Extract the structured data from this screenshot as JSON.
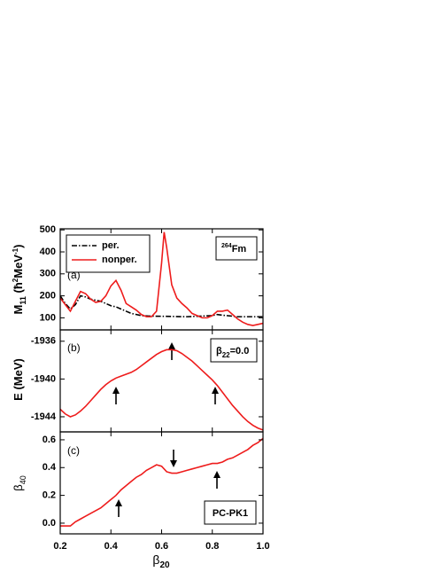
{
  "chart_data": [
    {
      "type": "line",
      "legend": "upper left",
      "ylabel": [
        "M",
        "11",
        " (ħ",
        "2",
        "MeV",
        "-1",
        ")"
      ],
      "annotations": [
        [
          "(a)"
        ],
        [
          "264",
          "Fm"
        ]
      ],
      "xlim": [
        0.2,
        1.0
      ],
      "xticks": [
        0.2,
        0.4,
        0.6,
        0.8,
        {
          "value": 1,
          "label": "1.0"
        }
      ],
      "show_xtick_labels": false,
      "ylim": [
        45,
        505
      ],
      "yticks": [
        100,
        200,
        300,
        400,
        500
      ],
      "series": [
        {
          "name": "per.",
          "color": "#000000",
          "dash": "dashdot",
          "x": [
            0.2,
            0.22,
            0.24,
            0.26,
            0.28,
            0.3,
            0.32,
            0.34,
            0.36,
            0.38,
            0.4,
            0.42,
            0.44,
            0.46,
            0.48,
            0.5,
            0.52,
            0.55,
            0.6,
            0.7,
            0.8,
            0.82,
            0.84,
            0.9,
            1.0
          ],
          "values": [
            200,
            165,
            140,
            160,
            200,
            195,
            185,
            180,
            175,
            165,
            155,
            150,
            140,
            130,
            120,
            115,
            110,
            108,
            107,
            105,
            110,
            115,
            112,
            105,
            105
          ]
        },
        {
          "name": "nonper.",
          "color": "#ee1c1c",
          "dash": "solid",
          "x": [
            0.2,
            0.22,
            0.24,
            0.26,
            0.28,
            0.3,
            0.32,
            0.34,
            0.36,
            0.38,
            0.4,
            0.42,
            0.44,
            0.46,
            0.48,
            0.5,
            0.52,
            0.54,
            0.56,
            0.58,
            0.6,
            0.61,
            0.62,
            0.64,
            0.66,
            0.68,
            0.7,
            0.72,
            0.74,
            0.76,
            0.78,
            0.8,
            0.82,
            0.84,
            0.86,
            0.88,
            0.9,
            0.92,
            0.94,
            0.96,
            0.98,
            1.0
          ],
          "values": [
            190,
            160,
            130,
            175,
            220,
            210,
            185,
            170,
            175,
            200,
            245,
            270,
            225,
            165,
            150,
            135,
            115,
            105,
            105,
            130,
            350,
            490,
            420,
            250,
            190,
            165,
            145,
            120,
            110,
            100,
            100,
            110,
            130,
            130,
            135,
            115,
            95,
            80,
            70,
            65,
            70,
            75
          ]
        }
      ]
    },
    {
      "type": "line",
      "ylabel": [
        "E (MeV)"
      ],
      "annotations": [
        [
          "(b)"
        ],
        [
          "β",
          "22",
          "=0.0"
        ]
      ],
      "xlim": [
        0.2,
        1.0
      ],
      "xticks": [
        0.2,
        0.4,
        0.6,
        0.8,
        {
          "value": 1,
          "label": "1.0"
        }
      ],
      "show_xtick_labels": false,
      "ylim": [
        -1945.6,
        -1934.8
      ],
      "yticks": [
        -1936,
        -1940,
        -1944
      ],
      "series": [
        {
          "color": "#ee1c1c",
          "dash": "solid",
          "x": [
            0.2,
            0.22,
            0.24,
            0.26,
            0.28,
            0.3,
            0.32,
            0.34,
            0.36,
            0.38,
            0.4,
            0.42,
            0.44,
            0.46,
            0.48,
            0.5,
            0.52,
            0.54,
            0.56,
            0.58,
            0.6,
            0.62,
            0.64,
            0.66,
            0.68,
            0.7,
            0.72,
            0.74,
            0.76,
            0.78,
            0.8,
            0.82,
            0.84,
            0.86,
            0.88,
            0.9,
            0.92,
            0.94,
            0.96,
            0.98,
            1.0
          ],
          "values": [
            -1943.2,
            -1943.7,
            -1944.0,
            -1943.8,
            -1943.4,
            -1942.9,
            -1942.3,
            -1941.7,
            -1941.1,
            -1940.6,
            -1940.2,
            -1939.9,
            -1939.7,
            -1939.5,
            -1939.3,
            -1939.0,
            -1938.6,
            -1938.2,
            -1937.8,
            -1937.4,
            -1937.1,
            -1936.9,
            -1936.9,
            -1937.0,
            -1937.3,
            -1937.7,
            -1938.1,
            -1938.6,
            -1939.1,
            -1939.6,
            -1940.1,
            -1940.7,
            -1941.4,
            -1942.1,
            -1942.8,
            -1943.4,
            -1944.0,
            -1944.5,
            -1944.9,
            -1945.2,
            -1945.4
          ]
        }
      ]
    },
    {
      "type": "line",
      "ylabel": [
        "β",
        "40"
      ],
      "xlabel": [
        "β",
        "20"
      ],
      "annotations": [
        [
          "(c)"
        ],
        [
          "PC-PK1"
        ]
      ],
      "xlim": [
        0.2,
        1.0
      ],
      "xticks": [
        0.2,
        0.4,
        0.6,
        0.8,
        {
          "value": 1,
          "label": "1.0"
        }
      ],
      "show_xtick_labels": true,
      "ylim": [
        -0.077,
        0.657
      ],
      "yticks": [
        {
          "value": 0,
          "label": "0.0"
        },
        0.2,
        0.4,
        0.6
      ],
      "series": [
        {
          "color": "#ee1c1c",
          "dash": "solid",
          "x": [
            0.2,
            0.22,
            0.24,
            0.26,
            0.28,
            0.3,
            0.32,
            0.34,
            0.36,
            0.38,
            0.4,
            0.42,
            0.44,
            0.46,
            0.48,
            0.5,
            0.52,
            0.54,
            0.56,
            0.58,
            0.6,
            0.62,
            0.64,
            0.66,
            0.68,
            0.7,
            0.72,
            0.74,
            0.76,
            0.78,
            0.8,
            0.82,
            0.84,
            0.86,
            0.88,
            0.9,
            0.92,
            0.94,
            0.96,
            0.98,
            1.0
          ],
          "values": [
            -0.02,
            -0.02,
            -0.02,
            0.01,
            0.03,
            0.05,
            0.07,
            0.09,
            0.11,
            0.14,
            0.17,
            0.2,
            0.24,
            0.27,
            0.3,
            0.33,
            0.35,
            0.38,
            0.4,
            0.42,
            0.41,
            0.37,
            0.36,
            0.36,
            0.37,
            0.38,
            0.39,
            0.4,
            0.41,
            0.42,
            0.43,
            0.43,
            0.44,
            0.46,
            0.47,
            0.49,
            0.51,
            0.53,
            0.56,
            0.58,
            0.61
          ]
        }
      ]
    }
  ]
}
